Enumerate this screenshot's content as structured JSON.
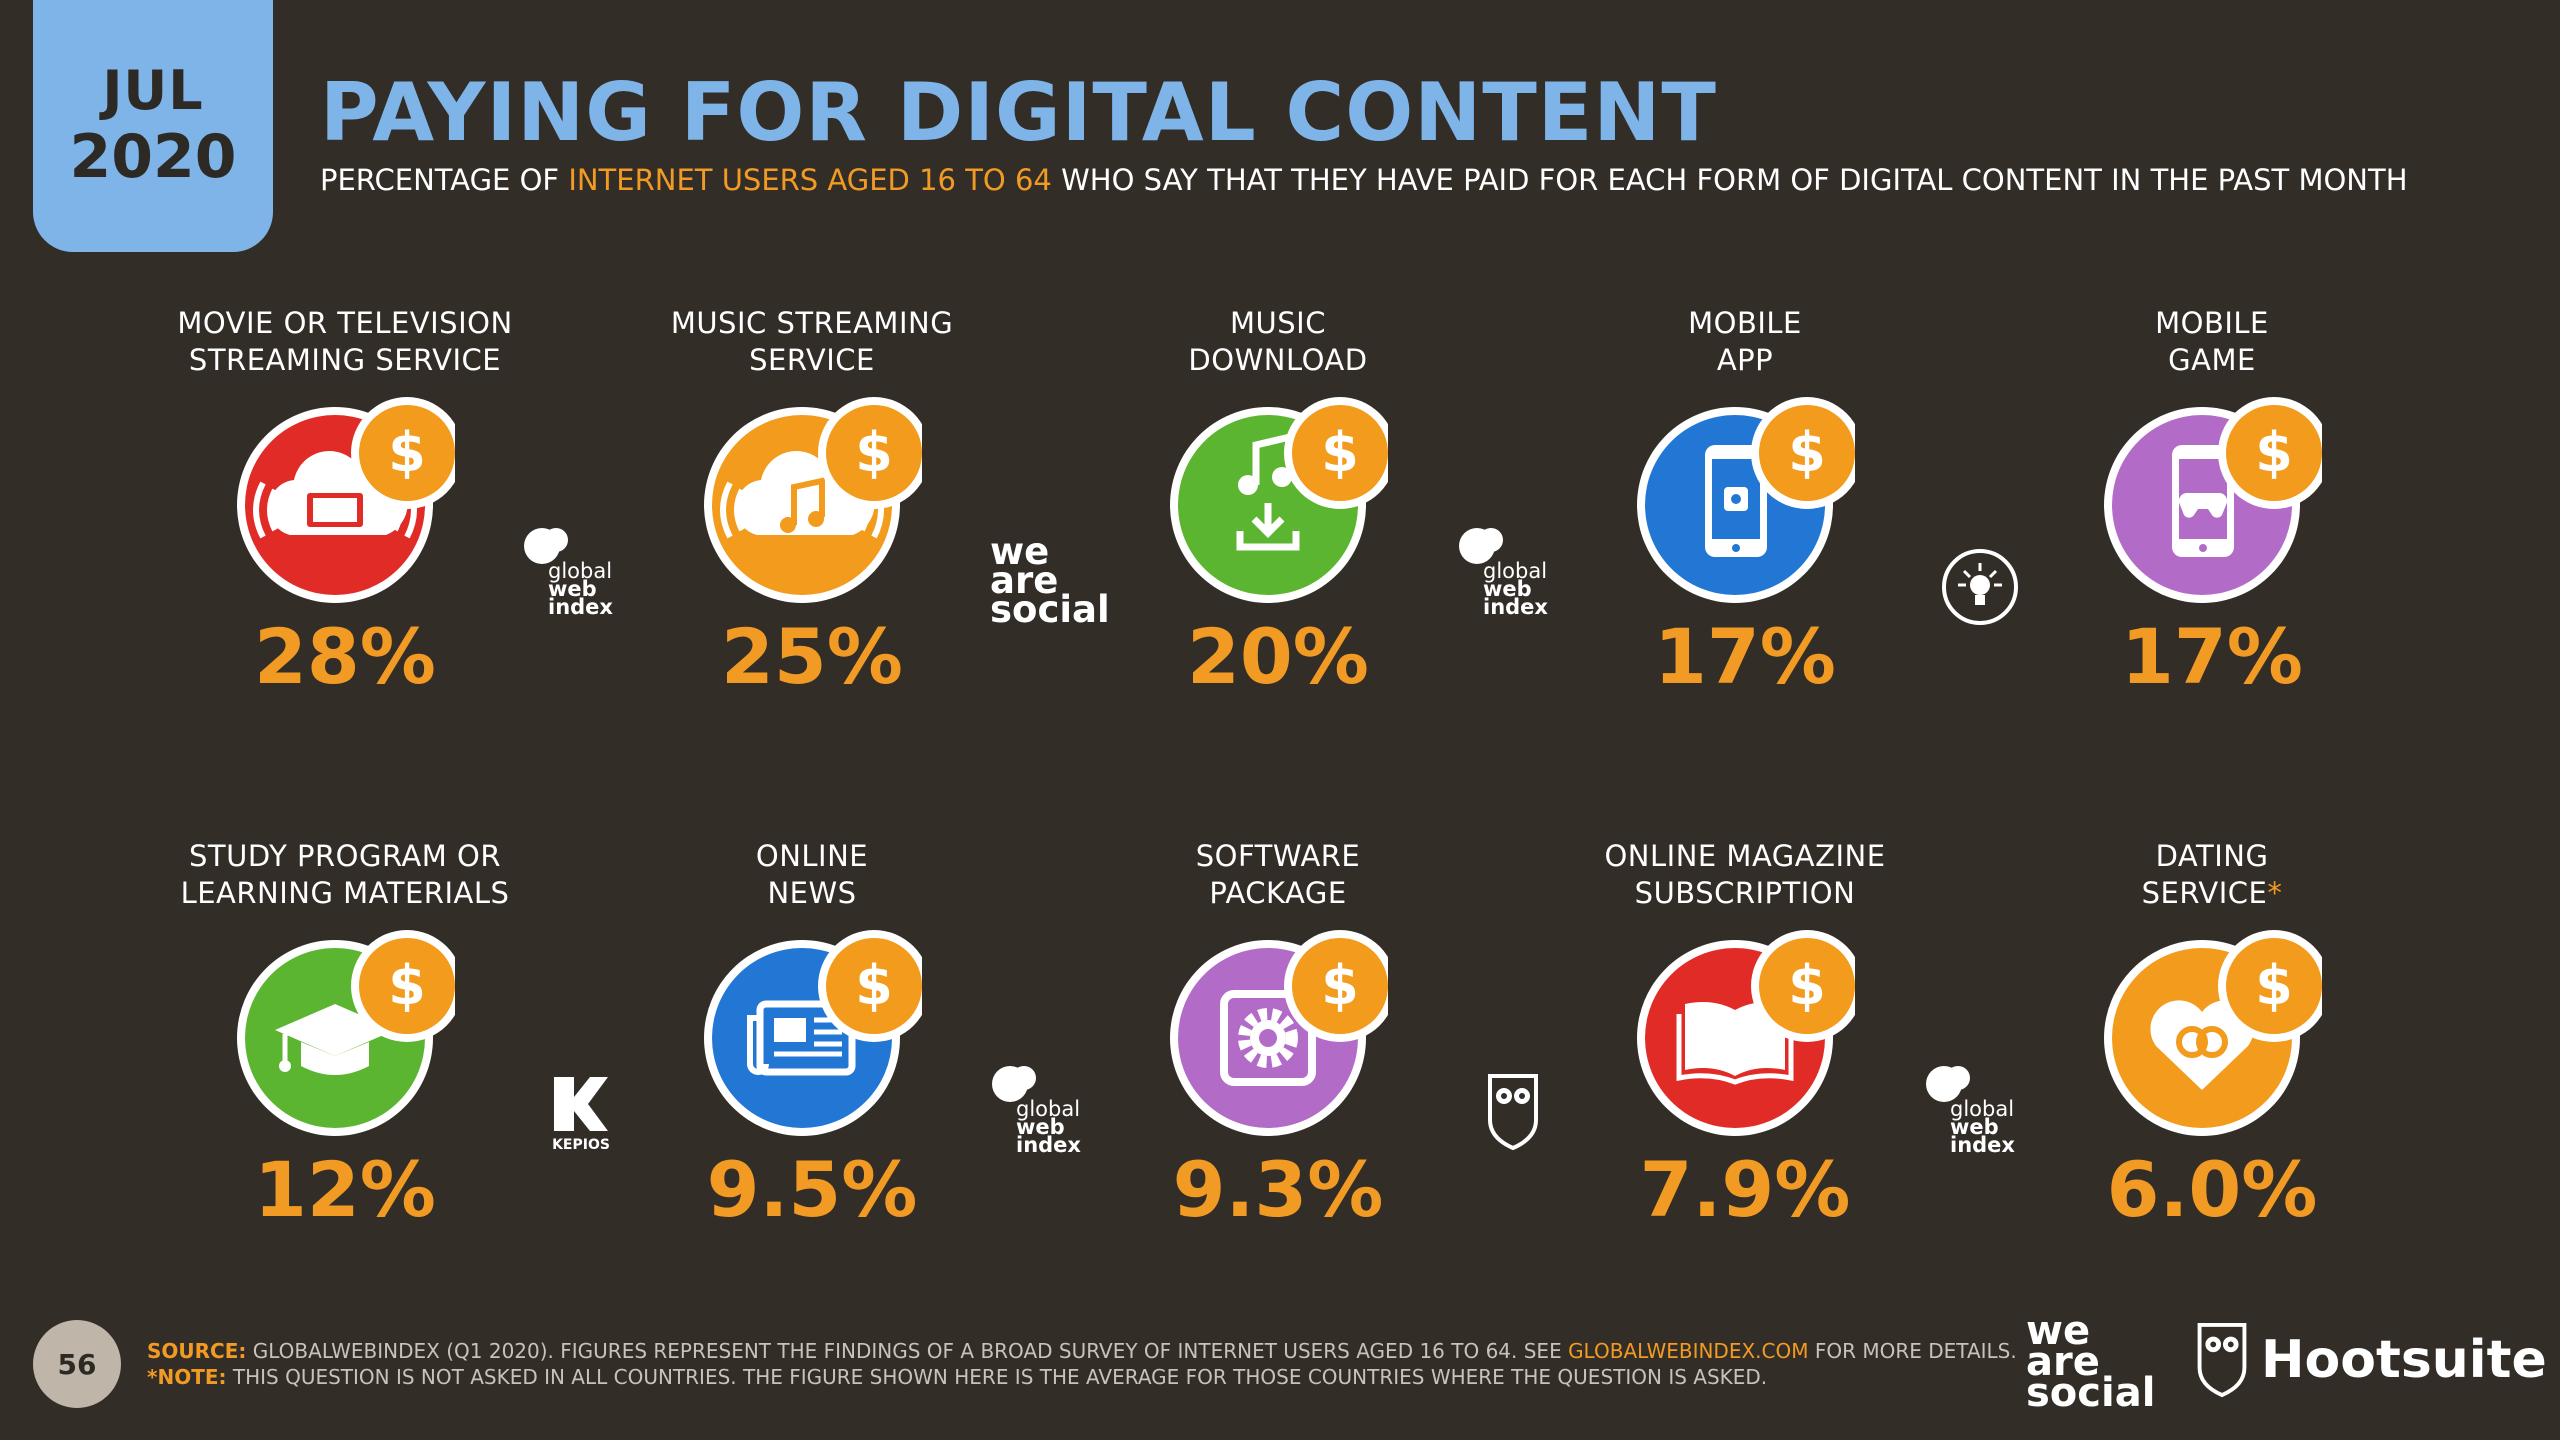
{
  "header": {
    "month": "JUL",
    "year": "2020",
    "title": "PAYING FOR DIGITAL CONTENT",
    "subtitle_pre": "PERCENTAGE OF ",
    "subtitle_hl": "INTERNET USERS AGED 16 TO 64",
    "subtitle_post": " WHO SAY THAT THEY HAVE PAID FOR EACH FORM OF DIGITAL CONTENT IN THE PAST MONTH"
  },
  "items": [
    {
      "line1": "MOVIE OR TELEVISION",
      "line2": "STREAMING SERVICE",
      "value": "28%",
      "icon": "cloud-tv-icon",
      "color": "#e02b27"
    },
    {
      "line1": "MUSIC STREAMING",
      "line2": "SERVICE",
      "value": "25%",
      "icon": "cloud-music-icon",
      "color": "#f29b1c"
    },
    {
      "line1": "MUSIC",
      "line2": "DOWNLOAD",
      "value": "20%",
      "icon": "music-download-icon",
      "color": "#5cb531"
    },
    {
      "line1": "MOBILE",
      "line2": "APP",
      "value": "17%",
      "icon": "mobile-app-icon",
      "color": "#2277d4"
    },
    {
      "line1": "MOBILE",
      "line2": "GAME",
      "value": "17%",
      "icon": "mobile-game-icon",
      "color": "#b26cc8"
    },
    {
      "line1": "STUDY PROGRAM OR",
      "line2": "LEARNING MATERIALS",
      "value": "12%",
      "icon": "graduation-cap-icon",
      "color": "#5cb531"
    },
    {
      "line1": "ONLINE",
      "line2": "NEWS",
      "value": "9.5%",
      "icon": "newspaper-icon",
      "color": "#2277d4"
    },
    {
      "line1": "SOFTWARE",
      "line2": "PACKAGE",
      "value": "9.3%",
      "icon": "gear-icon",
      "color": "#b26cc8"
    },
    {
      "line1": "ONLINE MAGAZINE",
      "line2": "SUBSCRIPTION",
      "value": "7.9%",
      "icon": "open-book-icon",
      "color": "#e02b27"
    },
    {
      "line1": "DATING",
      "line2": "SERVICE",
      "asterisk": "*",
      "value": "6.0%",
      "icon": "heart-rings-icon",
      "color": "#f29b1c"
    }
  ],
  "dollar_sign": "$",
  "logos": {
    "gwi_1": "global",
    "gwi_2": "web",
    "gwi_3": "index",
    "was_1": "we",
    "was_2": "are",
    "was_3": "social",
    "kepios": "KEPIOS",
    "hootsuite": "Hootsuite"
  },
  "footer": {
    "page": "56",
    "source_key": "SOURCE:",
    "source_text": " GLOBALWEBINDEX (Q1 2020). FIGURES REPRESENT THE FINDINGS OF A BROAD SURVEY OF INTERNET USERS AGED 16 TO 64. SEE ",
    "source_link": "GLOBALWEBINDEX.COM",
    "source_end": " FOR MORE DETAILS.",
    "note_key": "*NOTE:",
    "note_text": " THIS QUESTION IS NOT ASKED IN ALL COUNTRIES. THE FIGURE SHOWN HERE IS THE AVERAGE FOR THOSE COUNTRIES WHERE THE QUESTION IS ASKED."
  },
  "colors": {
    "accent": "#f29b24",
    "title_blue": "#7eb4e8",
    "background": "#332d28"
  }
}
